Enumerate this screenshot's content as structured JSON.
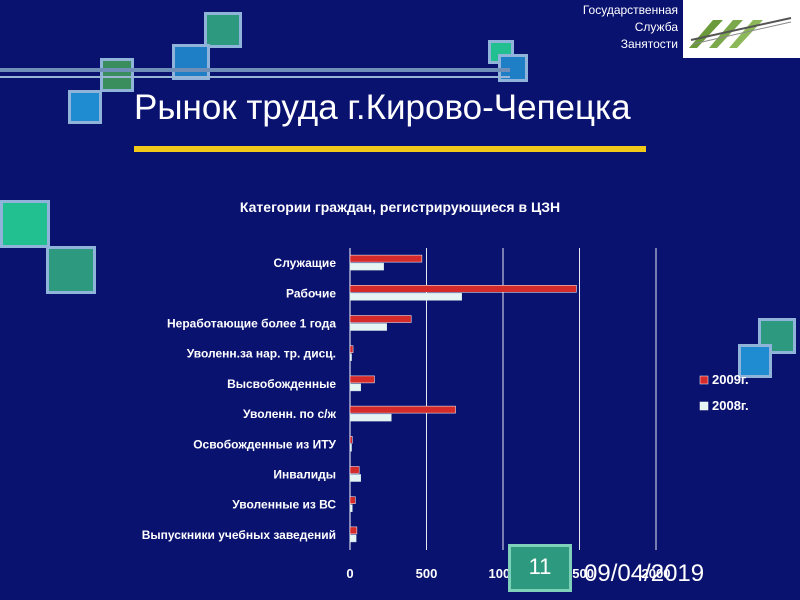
{
  "header": {
    "org_line1": "Государственная",
    "org_line2": "Служба",
    "org_line3": "Занятости",
    "logo_icon": "employment-service-logo"
  },
  "slide": {
    "title": "Рынок труда г.Кирово-Чепецка",
    "page_number": "11",
    "date": "09/04/2019"
  },
  "colors": {
    "background": "#0a1270",
    "series_2009": "#d42a2a",
    "series_2008": "#e6f4f4",
    "accent_bar": "#f2c81a"
  },
  "chart_data": {
    "type": "bar",
    "orientation": "horizontal",
    "title": "Категории граждан, регистрирующиеся в ЦЗН",
    "categories": [
      "Служащие",
      "Рабочие",
      "Неработающие более 1 года",
      "Уволенн.за нар. тр. дисц.",
      "Высвобожденные",
      "Уволенн. по с/ж",
      "Освобожденные из ИТУ",
      "Инвалиды",
      "Уволенные из ВС",
      "Выпускники учебных заведений"
    ],
    "series": [
      {
        "name": "2009г.",
        "values": [
          470,
          1480,
          400,
          20,
          160,
          690,
          15,
          60,
          35,
          45
        ]
      },
      {
        "name": "2008г.",
        "values": [
          220,
          730,
          240,
          10,
          70,
          270,
          10,
          70,
          15,
          40
        ]
      }
    ],
    "xlim": [
      0,
      2000
    ],
    "xticks": [
      "0",
      "500",
      "1000",
      "1500",
      "2000"
    ],
    "grid": true,
    "legend": "right"
  }
}
